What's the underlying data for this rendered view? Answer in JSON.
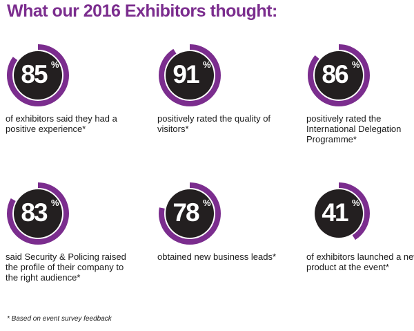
{
  "title": "What our 2016 Exhibitors thought:",
  "colors": {
    "ring": "#7b2d8e",
    "disc": "#231f20",
    "title": "#7b2d8e"
  },
  "stats": [
    {
      "value": 85,
      "label": "85",
      "unit": "%",
      "description": "of exhibitors said they had a positive experience*"
    },
    {
      "value": 91,
      "label": "91",
      "unit": "%",
      "description": "positively rated the quality of visitors*"
    },
    {
      "value": 86,
      "label": "86",
      "unit": "%",
      "description": "positively rated the International Delegation Programme*"
    },
    {
      "value": 83,
      "label": "83",
      "unit": "%",
      "description": "said Security & Policing raised the profile of their company to the right audience*"
    },
    {
      "value": 78,
      "label": "78",
      "unit": "%",
      "description": "obtained new business leads*"
    },
    {
      "value": 41,
      "label": "41",
      "unit": "%",
      "description": "of exhibitors launched a new product at the event*"
    }
  ],
  "footnote": "* Based on event survey feedback"
}
